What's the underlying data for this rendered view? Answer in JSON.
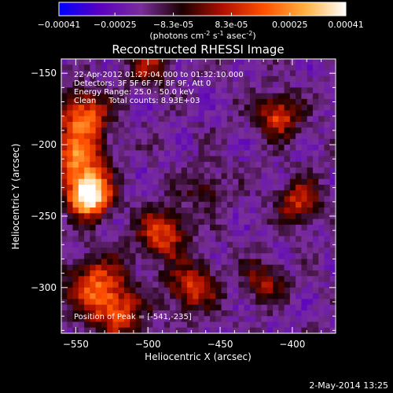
{
  "colorbar": {
    "tick_labels": [
      "-0.00041",
      "-0.00025",
      "-8.3e-05",
      "8.3e-05",
      "0.00025",
      "0.00041"
    ],
    "range": [
      -0.00041,
      0.00041
    ],
    "unit_main": "(photons cm",
    "unit_exp1": "-2",
    "unit_mid": " s",
    "unit_exp2": "-1",
    "unit_end": " asec",
    "unit_exp3": "-2",
    "unit_close": ")",
    "colormap": [
      "#0000ff",
      "#5a00c0",
      "#7a2e9a",
      "#1a0000",
      "#b01000",
      "#ff5000",
      "#ffb040",
      "#ffffff"
    ]
  },
  "chart_data": {
    "type": "heatmap",
    "title": "Reconstructed RHESSI Image",
    "xlabel": "Heliocentric X (arcsec)",
    "ylabel": "Heliocentric Y (arcsec)",
    "xlim": [
      -560,
      -370
    ],
    "ylim": [
      -332,
      -140
    ],
    "xticks": [
      -550,
      -500,
      -450,
      -400
    ],
    "yticks": [
      -150,
      -200,
      -250,
      -300
    ],
    "xtick_labels": [
      "−550",
      "−500",
      "−450",
      "−400"
    ],
    "ytick_labels": [
      "−150",
      "−200",
      "−250",
      "−300"
    ],
    "annotations": [
      "22-Apr-2012 01:27:04.000 to 01:32:10.000",
      "Detectors: 3F 5F 6F 7F 8F 9F, Att 0",
      "Energy Range: 25.0 - 50.0 keV",
      "Clean     Total counts: 8.93E+03"
    ],
    "peak_label": "Position of Peak = [-541,-235]",
    "peak": [
      -541,
      -235
    ],
    "sources": [
      {
        "x": -541,
        "y": -235,
        "amp": 1.0,
        "w": 10
      },
      {
        "x": -548,
        "y": -210,
        "amp": 0.55,
        "w": 12
      },
      {
        "x": -545,
        "y": -180,
        "amp": 0.55,
        "w": 12
      },
      {
        "x": -535,
        "y": -300,
        "amp": 0.5,
        "w": 14
      },
      {
        "x": -490,
        "y": -262,
        "amp": 0.45,
        "w": 12
      },
      {
        "x": -470,
        "y": -300,
        "amp": 0.4,
        "w": 12
      },
      {
        "x": -410,
        "y": -180,
        "amp": 0.45,
        "w": 10
      },
      {
        "x": -395,
        "y": -240,
        "amp": 0.4,
        "w": 10
      },
      {
        "x": -500,
        "y": -145,
        "amp": 0.3,
        "w": 10
      },
      {
        "x": -420,
        "y": -295,
        "amp": 0.3,
        "w": 10
      },
      {
        "x": -520,
        "y": -320,
        "amp": 0.35,
        "w": 12
      },
      {
        "x": -460,
        "y": -230,
        "amp": 0.2,
        "w": 10
      }
    ]
  },
  "footer": {
    "date": "2-May-2014 13:25"
  }
}
